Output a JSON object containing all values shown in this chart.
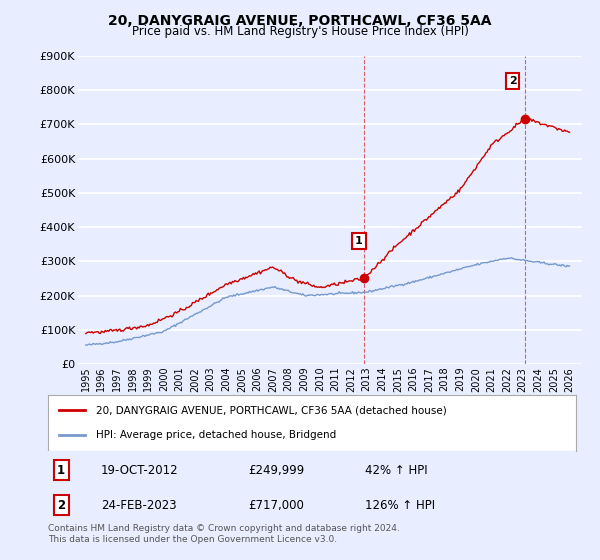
{
  "title": "20, DANYGRAIG AVENUE, PORTHCAWL, CF36 5AA",
  "subtitle": "Price paid vs. HM Land Registry's House Price Index (HPI)",
  "legend_line1": "20, DANYGRAIG AVENUE, PORTHCAWL, CF36 5AA (detached house)",
  "legend_line2": "HPI: Average price, detached house, Bridgend",
  "annotation1_label": "1",
  "annotation1_date": "19-OCT-2012",
  "annotation1_price": "£249,999",
  "annotation1_hpi": "42% ↑ HPI",
  "annotation2_label": "2",
  "annotation2_date": "24-FEB-2023",
  "annotation2_price": "£717,000",
  "annotation2_hpi": "126% ↑ HPI",
  "footnote1": "Contains HM Land Registry data © Crown copyright and database right 2024.",
  "footnote2": "This data is licensed under the Open Government Licence v3.0.",
  "ylim": [
    0,
    900000
  ],
  "yticks": [
    0,
    100000,
    200000,
    300000,
    400000,
    500000,
    600000,
    700000,
    800000,
    900000
  ],
  "ytick_labels": [
    "£0",
    "£100K",
    "£200K",
    "£300K",
    "£400K",
    "£500K",
    "£600K",
    "£700K",
    "£800K",
    "£900K"
  ],
  "background_color": "#e8eeff",
  "plot_bg_color": "#e8eeff",
  "grid_color": "#ffffff",
  "red_color": "#cc0000",
  "blue_color": "#7799cc",
  "point1_x": 2012.8,
  "point1_y": 249999,
  "point2_x": 2023.15,
  "point2_y": 717000,
  "vline1_x": 2012.8,
  "vline2_x": 2023.15,
  "xlim_left": 1994.5,
  "xlim_right": 2026.8
}
